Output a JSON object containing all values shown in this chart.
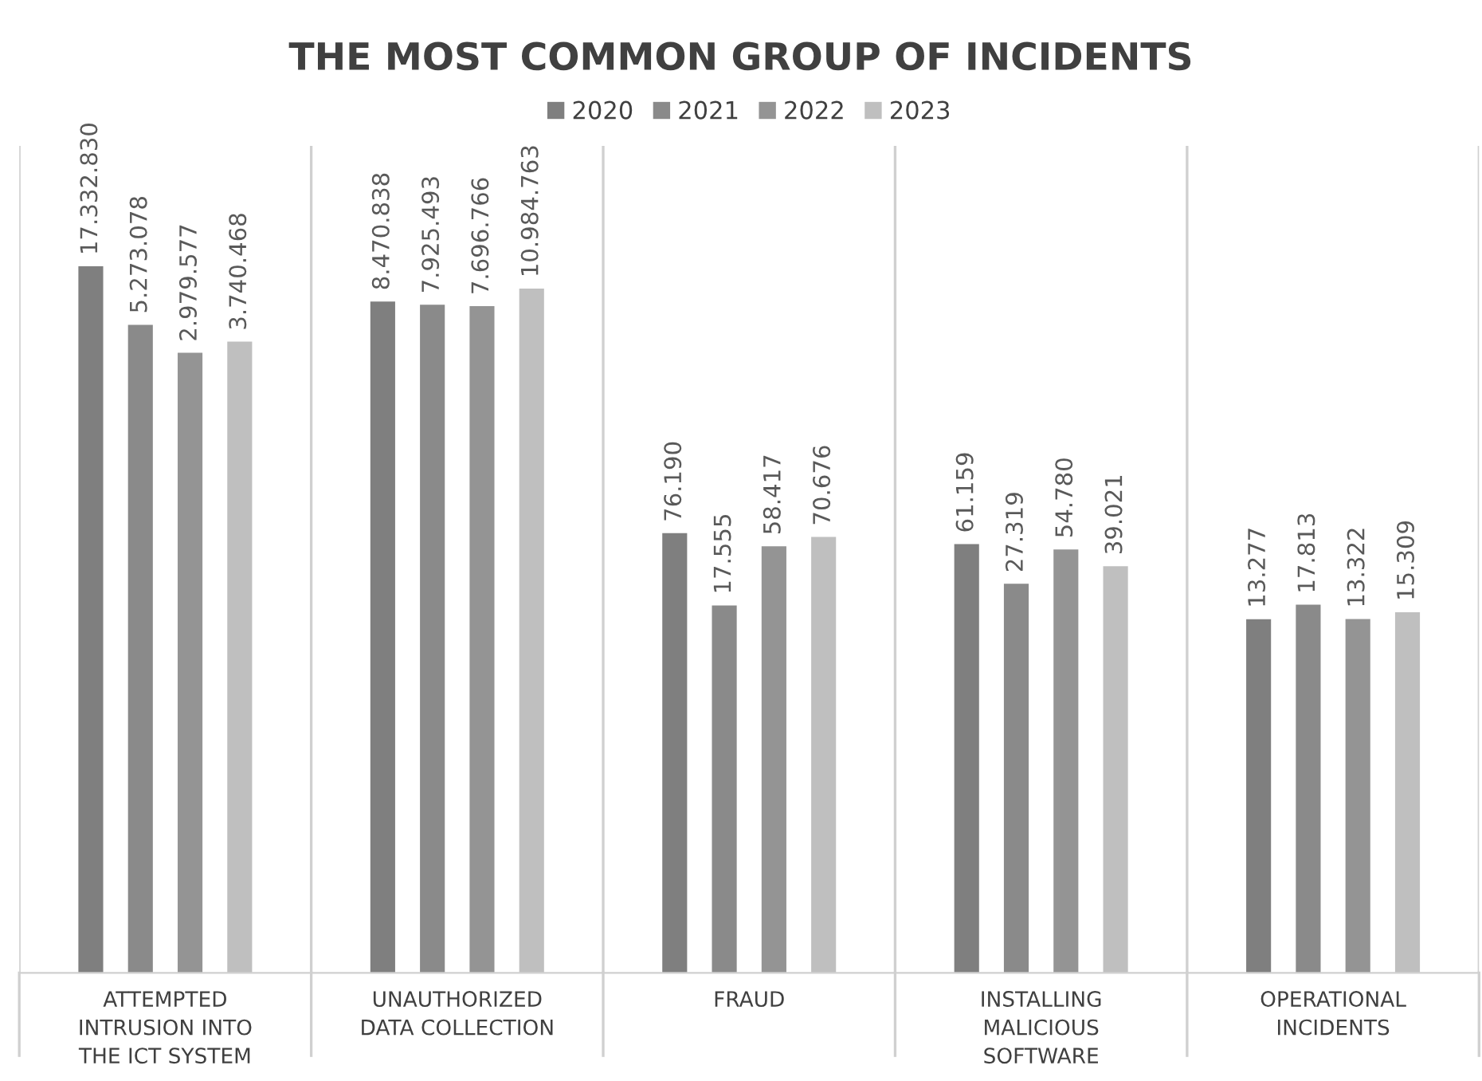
{
  "chart_data": {
    "type": "bar",
    "title": "THE MOST COMMON GROUP OF INCIDENTS",
    "categories": [
      "ATTEMPTED\nINTRUSION INTO\nTHE ICT SYSTEM",
      "UNAUTHORIZED\nDATA COLLECTION",
      "FRAUD",
      "INSTALLING\nMALICIOUS\nSOFTWARE",
      "OPERATIONAL\nINCIDENTS"
    ],
    "series": [
      {
        "name": "2020",
        "color": "#7f7f7f",
        "values": [
          17332830,
          8470838,
          76190,
          61159,
          13277
        ],
        "value_labels": [
          "17.332.830",
          "8.470.838",
          "76.190",
          "61.159",
          "13.277"
        ]
      },
      {
        "name": "2021",
        "color": "#8a8a8a",
        "values": [
          5273078,
          7925493,
          17555,
          27319,
          17813
        ],
        "value_labels": [
          "5.273.078",
          "7.925.493",
          "17.555",
          "27.319",
          "17.813"
        ]
      },
      {
        "name": "2022",
        "color": "#949494",
        "values": [
          2979577,
          7696766,
          58417,
          54780,
          13322
        ],
        "value_labels": [
          "2.979.577",
          "7.696.766",
          "58.417",
          "54.780",
          "13.322"
        ]
      },
      {
        "name": "2023",
        "color": "#bfbfbf",
        "values": [
          3740468,
          10984763,
          70676,
          39021,
          15309
        ],
        "value_labels": [
          "3.740.468",
          "10.984.763",
          "70.676",
          "39.021",
          "15.309"
        ]
      }
    ],
    "log": true,
    "ylim": [
      10,
      200000000
    ],
    "tick_labels": "x",
    "grid": "x",
    "legend": "top"
  }
}
